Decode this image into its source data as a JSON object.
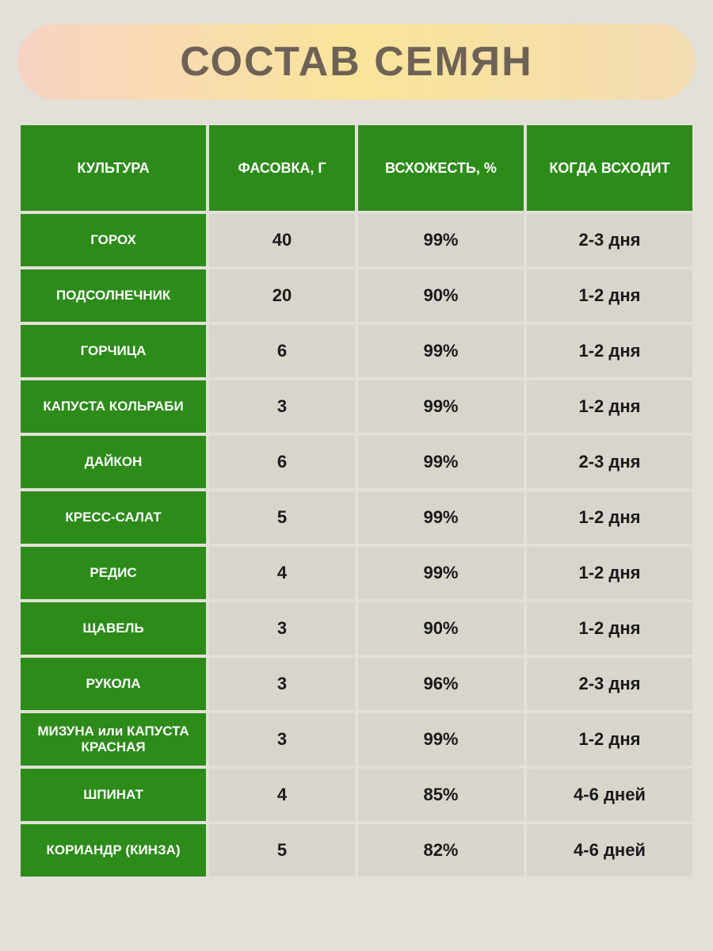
{
  "page": {
    "background_color": "#e3dfd9"
  },
  "title": {
    "text": "СОСТАВ СЕМЯН",
    "color": "#6e6257",
    "fontsize": 52,
    "banner_gradient_left": "#f7d3c4",
    "banner_gradient_mid": "#f9e59a",
    "banner_gradient_right": "#f3dbb2"
  },
  "table": {
    "header_bg": "#2c8b19",
    "header_color": "#ffffff",
    "name_cell_bg": "#2c8b19",
    "name_cell_color": "#ffffff",
    "data_cell_bg": "#d9d4cc",
    "data_cell_color": "#1a1a1a",
    "border_spacing": 4,
    "columns": [
      {
        "key": "culture",
        "label": "КУЛЬТУРА",
        "width_pct": 28
      },
      {
        "key": "packaging",
        "label": "ФАСОВКА, Г",
        "width_pct": 22
      },
      {
        "key": "germination",
        "label": "ВСХОЖЕСТЬ, %",
        "width_pct": 25
      },
      {
        "key": "when",
        "label": "КОГДА ВСХОДИТ",
        "width_pct": 25
      }
    ],
    "rows": [
      {
        "culture": "ГОРОХ",
        "packaging": "40",
        "germination": "99%",
        "when": "2-3 дня"
      },
      {
        "culture": "ПОДСОЛНЕЧНИК",
        "packaging": "20",
        "germination": "90%",
        "when": "1-2 дня"
      },
      {
        "culture": "ГОРЧИЦА",
        "packaging": "6",
        "germination": "99%",
        "when": "1-2 дня"
      },
      {
        "culture": "КАПУСТА КОЛЬРАБИ",
        "packaging": "3",
        "germination": "99%",
        "when": "1-2 дня"
      },
      {
        "culture": "ДАЙКОН",
        "packaging": "6",
        "germination": "99%",
        "when": "2-3 дня"
      },
      {
        "culture": "КРЕСС-САЛАТ",
        "packaging": "5",
        "germination": "99%",
        "when": "1-2 дня"
      },
      {
        "culture": "РЕДИС",
        "packaging": "4",
        "germination": "99%",
        "when": "1-2 дня"
      },
      {
        "culture": "ЩАВЕЛЬ",
        "packaging": "3",
        "germination": "90%",
        "when": "1-2 дня"
      },
      {
        "culture": "РУКОЛА",
        "packaging": "3",
        "germination": "96%",
        "when": "2-3 дня"
      },
      {
        "culture": "МИЗУНА или КАПУСТА КРАСНАЯ",
        "packaging": "3",
        "germination": "99%",
        "when": "1-2 дня"
      },
      {
        "culture": "ШПИНАТ",
        "packaging": "4",
        "germination": "85%",
        "when": "4-6 дней"
      },
      {
        "culture": "КОРИАНДР (КИНЗА)",
        "packaging": "5",
        "germination": "82%",
        "when": "4-6 дней"
      }
    ]
  }
}
